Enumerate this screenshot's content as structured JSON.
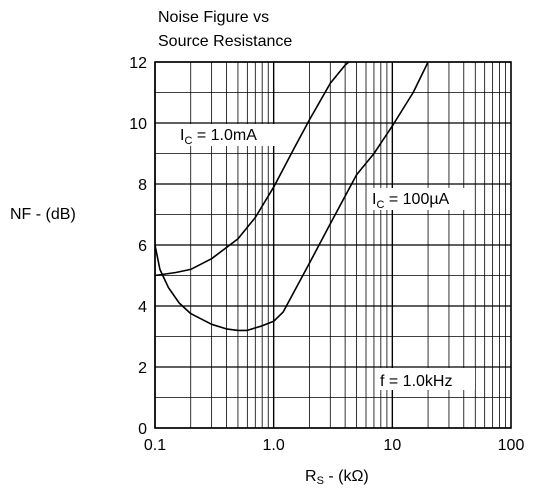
{
  "chart_data": {
    "type": "line",
    "title_lines": [
      "Noise Figure vs",
      "Source Resistance"
    ],
    "ylabel": "NF - (dB)",
    "xlabel_main": "R",
    "xlabel_sub": "S",
    "xlabel_rest": " - (kΩ)",
    "x_scale": "log",
    "xlim": [
      0.1,
      100
    ],
    "ylim": [
      0,
      12
    ],
    "x_ticks": [
      {
        "value": 0.1,
        "label": "0.1"
      },
      {
        "value": 1,
        "label": "1.0"
      },
      {
        "value": 10,
        "label": "10"
      },
      {
        "value": 100,
        "label": "100"
      }
    ],
    "y_ticks": [
      {
        "value": 0,
        "label": "0"
      },
      {
        "value": 2,
        "label": "2"
      },
      {
        "value": 4,
        "label": "4"
      },
      {
        "value": 6,
        "label": "6"
      },
      {
        "value": 8,
        "label": "8"
      },
      {
        "value": 10,
        "label": "10"
      },
      {
        "value": 12,
        "label": "12"
      }
    ],
    "grid": true,
    "series": [
      {
        "name": "I_C = 1.0mA",
        "label_text_main": "I",
        "label_text_sub": "C",
        "label_text_rest": " = 1.0mA",
        "x": [
          0.1,
          0.15,
          0.2,
          0.3,
          0.5,
          0.7,
          1.0,
          1.5,
          2.0,
          3.0,
          4.0,
          4.3
        ],
        "y": [
          5.0,
          5.1,
          5.2,
          5.55,
          6.2,
          6.9,
          7.9,
          9.2,
          10.1,
          11.3,
          11.9,
          12.0
        ]
      },
      {
        "name": "I_C = 100µA",
        "label_text_main": "I",
        "label_text_sub": "C",
        "label_text_rest": " = 100µA",
        "x": [
          0.1,
          0.11,
          0.13,
          0.16,
          0.2,
          0.3,
          0.4,
          0.5,
          0.6,
          0.8,
          1.0,
          1.2,
          1.5,
          2.0,
          3.0,
          5.0,
          7.0,
          10.0,
          15.0,
          20.0
        ],
        "y": [
          6.0,
          5.2,
          4.6,
          4.1,
          3.75,
          3.4,
          3.25,
          3.2,
          3.2,
          3.35,
          3.5,
          3.8,
          4.5,
          5.4,
          6.7,
          8.3,
          9.0,
          9.9,
          11.0,
          12.0
        ]
      }
    ],
    "annotation": "f = 1.0kHz"
  }
}
